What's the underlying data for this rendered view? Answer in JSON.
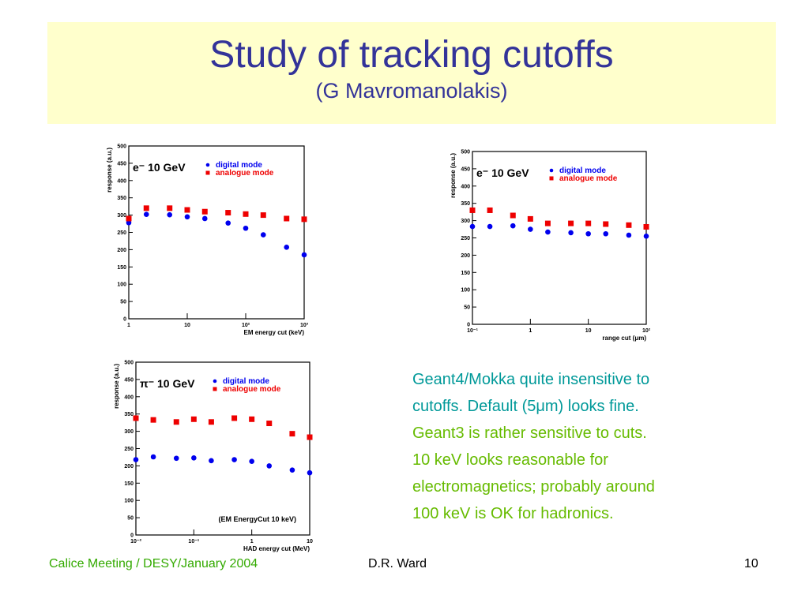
{
  "slide": {
    "title": "Study of tracking cutoffs",
    "subtitle": "(G Mavromanolakis)",
    "notes": [
      {
        "color": "#009999",
        "lines": [
          "Geant4/Mokka quite insensitive to",
          "cutoffs. Default (5μm) looks fine."
        ]
      },
      {
        "color": "#66bb00",
        "lines": [
          "Geant3 is rather sensitive to cuts.",
          "10 keV looks reasonable for",
          "electromagnetics; probably around",
          "100 keV is OK for hadronics."
        ]
      }
    ],
    "footer": {
      "left": "Calice Meeting / DESY/January 2004",
      "center": "D.R. Ward",
      "right": "10"
    }
  },
  "chart_data": [
    {
      "type": "scatter",
      "title": "e⁻ 10 GeV",
      "x_label": "EM energy cut (keV)",
      "y_label": "response (a.u.)",
      "x": [
        1,
        2,
        5,
        10,
        20,
        50,
        100,
        200,
        500,
        1000
      ],
      "x_log": true,
      "xlim": [
        1,
        1000
      ],
      "xticks": [
        1,
        10,
        {
          "value": 100,
          "label": "10²"
        },
        {
          "value": 1000,
          "label": "10³"
        }
      ],
      "ylim": [
        0,
        500
      ],
      "yticks": [
        0,
        50,
        100,
        150,
        200,
        250,
        300,
        350,
        400,
        450,
        500
      ],
      "series": [
        {
          "name": "digital mode",
          "color": "#0000ee",
          "marker": "circle",
          "values": [
            278,
            302,
            301,
            295,
            290,
            277,
            262,
            243,
            207,
            185
          ]
        },
        {
          "name": "analogue mode",
          "color": "#ee0000",
          "marker": "square",
          "values": [
            290,
            320,
            320,
            315,
            310,
            307,
            303,
            300,
            290,
            288
          ]
        }
      ]
    },
    {
      "type": "scatter",
      "title": "e⁻ 10 GeV",
      "x_label": "range cut (μm)",
      "y_label": "response (a.u.)",
      "x": [
        0.1,
        0.2,
        0.5,
        1,
        2,
        5,
        10,
        20,
        50,
        100
      ],
      "x_log": true,
      "xlim": [
        0.1,
        100
      ],
      "xticks": [
        {
          "value": 0.1,
          "label": "10⁻¹"
        },
        1,
        10,
        {
          "value": 100,
          "label": "10²"
        }
      ],
      "ylim": [
        0,
        500
      ],
      "yticks": [
        0,
        50,
        100,
        150,
        200,
        250,
        300,
        350,
        400,
        450,
        500
      ],
      "series": [
        {
          "name": "digital mode",
          "color": "#0000ee",
          "marker": "circle",
          "values": [
            283,
            283,
            285,
            275,
            267,
            265,
            262,
            262,
            258,
            255
          ]
        },
        {
          "name": "analogue mode",
          "color": "#ee0000",
          "marker": "square",
          "values": [
            330,
            330,
            315,
            305,
            292,
            292,
            292,
            290,
            287,
            282
          ]
        }
      ]
    },
    {
      "type": "scatter",
      "title": "π⁻ 10 GeV",
      "x_label": "HAD energy cut (MeV)",
      "y_label": "response (a.u.)",
      "annotation": "(EM EnergyCut 10 keV)",
      "x": [
        0.01,
        0.02,
        0.05,
        0.1,
        0.2,
        0.5,
        1,
        2,
        5,
        10
      ],
      "x_log": true,
      "xlim": [
        0.01,
        10
      ],
      "xticks": [
        {
          "value": 0.01,
          "label": "10⁻²"
        },
        {
          "value": 0.1,
          "label": "10⁻¹"
        },
        1,
        10
      ],
      "ylim": [
        0,
        500
      ],
      "yticks": [
        0,
        50,
        100,
        150,
        200,
        250,
        300,
        350,
        400,
        450,
        500
      ],
      "series": [
        {
          "name": "digital mode",
          "color": "#0000ee",
          "marker": "circle",
          "values": [
            218,
            226,
            222,
            223,
            215,
            218,
            213,
            200,
            188,
            180
          ]
        },
        {
          "name": "analogue mode",
          "color": "#ee0000",
          "marker": "square",
          "values": [
            338,
            333,
            327,
            335,
            327,
            338,
            335,
            323,
            293,
            283
          ]
        }
      ]
    }
  ]
}
